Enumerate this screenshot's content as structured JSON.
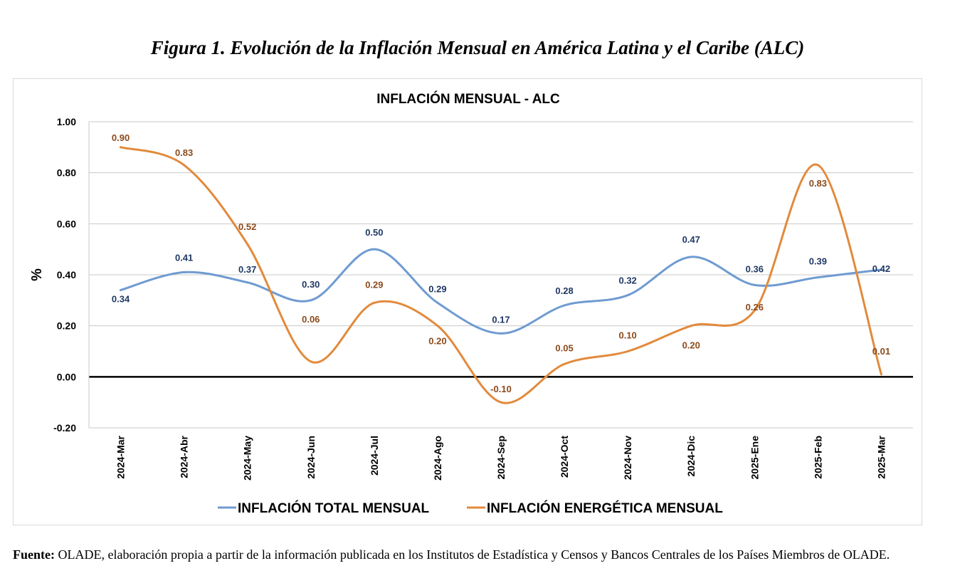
{
  "figure_title": "Figura 1. Evolución de la Inflación Mensual en América Latina y el Caribe (ALC)",
  "source": {
    "label": "Fuente:",
    "text": " OLADE, elaboración propia a partir de la información publicada en los Institutos de Estadística y Censos y Bancos Centrales de los Países Miembros de OLADE."
  },
  "chart_data": {
    "type": "line",
    "title": "INFLACIÓN MENSUAL - ALC",
    "xlabel": "",
    "ylabel": "%",
    "ylim": [
      -0.2,
      1.0
    ],
    "yticks": [
      "1.00",
      "0.80",
      "0.60",
      "0.40",
      "0.20",
      "0.00",
      "-0.20"
    ],
    "grid": true,
    "legend_position": "bottom",
    "categories": [
      "2024-Mar",
      "2024-Abr",
      "2024-May",
      "2024-Jun",
      "2024-Jul",
      "2024-Ago",
      "2024-Sep",
      "2024-Oct",
      "2024-Nov",
      "2024-Dic",
      "2025-Ene",
      "2025-Feb",
      "2025-Mar"
    ],
    "series": [
      {
        "name": "INFLACIÓN TOTAL MENSUAL",
        "color": "#6f9bd1",
        "label_color": "#1f3864",
        "values": [
          0.34,
          0.41,
          0.37,
          0.3,
          0.5,
          0.29,
          0.17,
          0.28,
          0.32,
          0.47,
          0.36,
          0.39,
          0.42
        ],
        "labels": [
          "0.34",
          "0.41",
          "0.37",
          "0.30",
          "0.50",
          "0.29",
          "0.17",
          "0.28",
          "0.32",
          "0.47",
          "0.36",
          "0.39",
          "0.42"
        ]
      },
      {
        "name": "INFLACIÓN ENERGÉTICA MENSUAL",
        "color": "#e28a3c",
        "label_color": "#8b4a1c",
        "values": [
          0.9,
          0.83,
          0.52,
          0.06,
          0.29,
          0.2,
          -0.1,
          0.05,
          0.1,
          0.2,
          0.26,
          0.83,
          0.01
        ],
        "labels": [
          "0.90",
          "0.83",
          "0.52",
          "0.06",
          "0.29",
          "0.20",
          "-0.10",
          "0.05",
          "0.10",
          "0.20",
          "0.26",
          "0.83",
          "0.01"
        ]
      }
    ]
  }
}
